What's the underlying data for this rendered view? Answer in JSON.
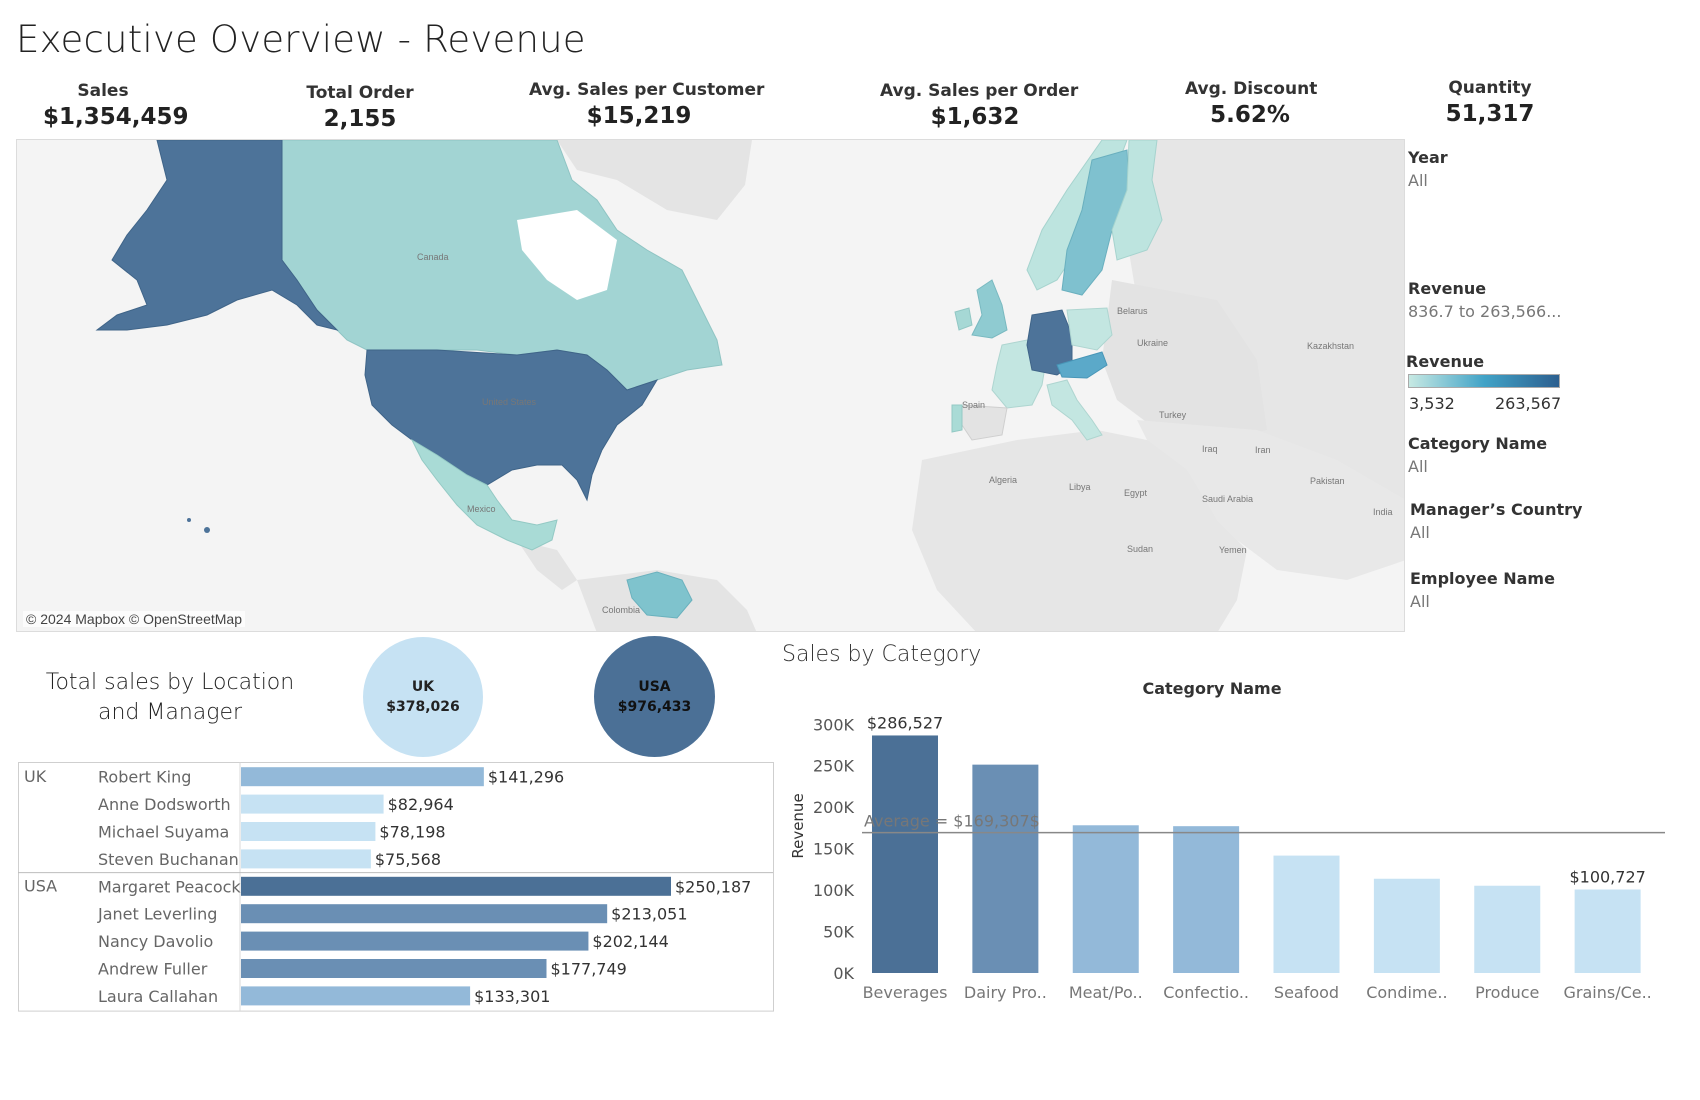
{
  "title": "Executive Overview - Revenue",
  "kpis": [
    {
      "label": "Sales",
      "value": "$1,354,459"
    },
    {
      "label": "Total Order",
      "value": "2,155"
    },
    {
      "label": "Avg. Sales per Customer",
      "value": "$15,219"
    },
    {
      "label": "Avg. Sales per Order",
      "value": "$1,632"
    },
    {
      "label": "Avg. Discount",
      "value": "5.62%"
    },
    {
      "label": "Quantity",
      "value": "51,317"
    }
  ],
  "map": {
    "credit": "© 2024 Mapbox © OpenStreetMap",
    "labels": [
      "Canada",
      "United States",
      "Mexico",
      "Colombia",
      "Spain",
      "Belarus",
      "Ukraine",
      "Kazakhstan",
      "Turkey",
      "Iraq",
      "Iran",
      "Algeria",
      "Libya",
      "Egypt",
      "Saudi Arabia",
      "Pakistan",
      "India",
      "Sudan",
      "Yemen"
    ]
  },
  "filters": {
    "year": {
      "label": "Year",
      "value": "All"
    },
    "revenue": {
      "label": "Revenue",
      "value": "836.7 to 263,566..."
    },
    "category": {
      "label": "Category Name",
      "value": "All"
    },
    "manager_country": {
      "label": "Manager’s Country",
      "value": "All"
    },
    "employee": {
      "label": "Employee Name",
      "value": "All"
    }
  },
  "legend": {
    "title": "Revenue",
    "min": "3,532",
    "max": "263,567",
    "colors": [
      "#c7e9e3",
      "#2c5f8f"
    ]
  },
  "location": {
    "title_line1": "Total sales by Location",
    "title_line2": "and Manager",
    "uk": {
      "label": "UK",
      "value": "$378,026"
    },
    "usa": {
      "label": "USA",
      "value": "$976,433"
    }
  },
  "category": {
    "title": "Sales by Category"
  },
  "chart_data": [
    {
      "type": "bar",
      "orientation": "horizontal",
      "groups": [
        {
          "name": "UK",
          "rows": [
            {
              "manager": "Robert King",
              "value": 141296,
              "label": "$141,296"
            },
            {
              "manager": "Anne Dodsworth",
              "value": 82964,
              "label": "$82,964"
            },
            {
              "manager": "Michael Suyama",
              "value": 78198,
              "label": "$78,198"
            },
            {
              "manager": "Steven Buchanan",
              "value": 75568,
              "label": "$75,568"
            }
          ]
        },
        {
          "name": "USA",
          "rows": [
            {
              "manager": "Margaret Peacock",
              "value": 250187,
              "label": "$250,187"
            },
            {
              "manager": "Janet Leverling",
              "value": 213051,
              "label": "$213,051"
            },
            {
              "manager": "Nancy Davolio",
              "value": 202144,
              "label": "$202,144"
            },
            {
              "manager": "Andrew Fuller",
              "value": 177749,
              "label": "$177,749"
            },
            {
              "manager": "Laura Callahan",
              "value": 133301,
              "label": "$133,301"
            }
          ]
        }
      ],
      "xlim": [
        0,
        250187
      ]
    },
    {
      "type": "bar",
      "title": "Category Name",
      "ylabel": "Revenue",
      "categories": [
        "Beverages",
        "Dairy Pro..",
        "Meat/Po..",
        "Confectio..",
        "Seafood",
        "Condime..",
        "Produce",
        "Grains/Ce.."
      ],
      "values": [
        286527,
        251331,
        178188,
        177100,
        141623,
        113695,
        105268,
        100727
      ],
      "data_labels": {
        "Beverages": "$286,527",
        "Grains/Ce..": "$100,727"
      },
      "yticks": [
        0,
        50000,
        100000,
        150000,
        200000,
        250000,
        300000
      ],
      "ytick_labels": [
        "0K",
        "50K",
        "100K",
        "150K",
        "200K",
        "250K",
        "300K"
      ],
      "ylim": [
        0,
        310000
      ],
      "average": {
        "value": 169307,
        "label": "Average = $169,307$"
      },
      "grid": false
    }
  ]
}
